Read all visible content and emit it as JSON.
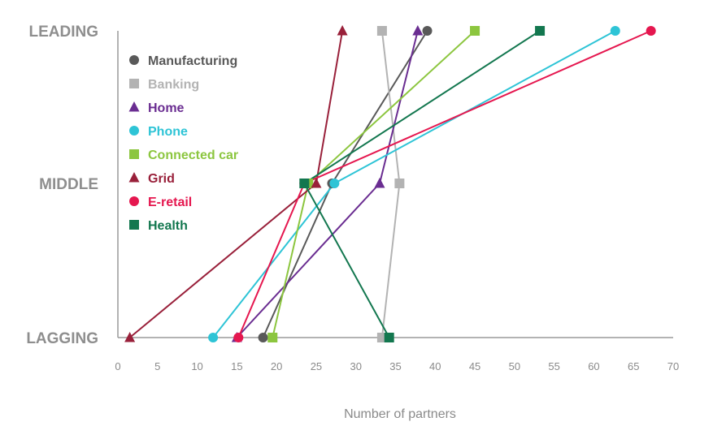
{
  "chart_data": {
    "type": "line",
    "xlabel": "Number of partners",
    "xlim": [
      0,
      70
    ],
    "xticks": [
      0,
      5,
      10,
      15,
      20,
      25,
      30,
      35,
      40,
      45,
      50,
      55,
      60,
      65,
      70
    ],
    "categories": [
      "LAGGING",
      "MIDDLE",
      "LEADING"
    ],
    "legend_position": "top-left",
    "series": [
      {
        "name": "Manufacturing",
        "color": "#595959",
        "marker": "circle",
        "values": [
          18.3,
          27,
          39
        ]
      },
      {
        "name": "Banking",
        "color": "#b3b3b3",
        "marker": "square",
        "values": [
          33.3,
          35.5,
          33.3
        ]
      },
      {
        "name": "Home",
        "color": "#6a2d91",
        "marker": "triangle",
        "values": [
          15,
          33,
          37.8
        ]
      },
      {
        "name": "Phone",
        "color": "#2ec4d6",
        "marker": "circle",
        "values": [
          12,
          27.3,
          62.7
        ]
      },
      {
        "name": "Connected car",
        "color": "#8cc63f",
        "marker": "square",
        "values": [
          19.5,
          24,
          45
        ]
      },
      {
        "name": "Grid",
        "color": "#99203a",
        "marker": "triangle",
        "values": [
          1.5,
          25,
          28.3
        ]
      },
      {
        "name": "E-retail",
        "color": "#e5174f",
        "marker": "circle",
        "values": [
          15.2,
          23.5,
          67.2
        ]
      },
      {
        "name": "Health",
        "color": "#13774f",
        "marker": "square",
        "values": [
          34.2,
          23.5,
          53.2
        ]
      }
    ]
  }
}
